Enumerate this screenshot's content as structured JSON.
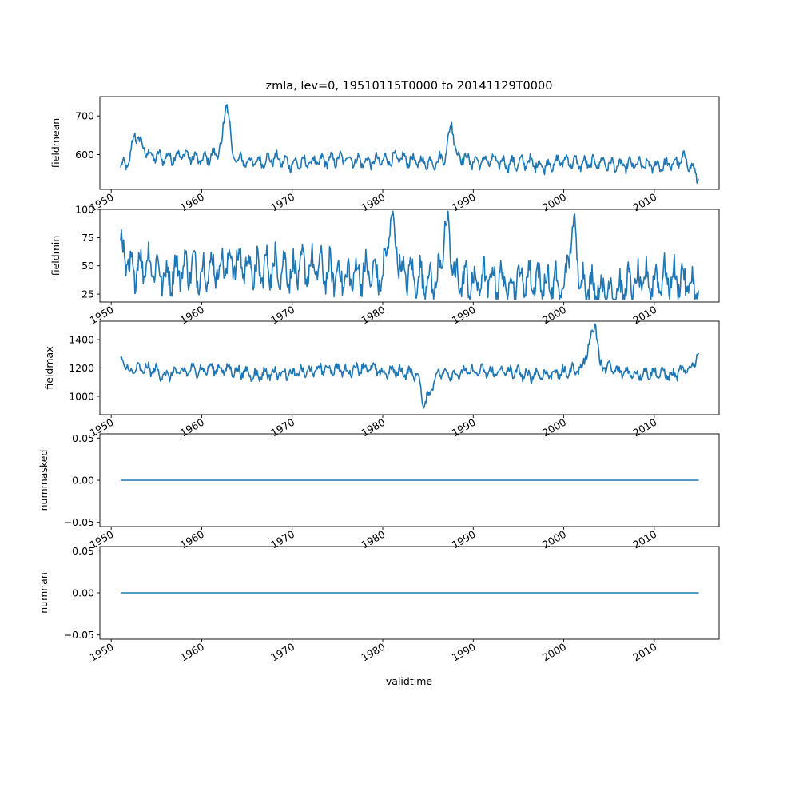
{
  "figure": {
    "title": "zmla, lev=0, 19510115T0000 to 20141129T0000",
    "xlabel": "validtime"
  },
  "chart_data": [
    {
      "type": "line",
      "ylabel": "fieldmean",
      "x_start": "1951-01-15",
      "x_end": "2014-11-29",
      "xlim": [
        "1948-10-01",
        "2017-03-01"
      ],
      "ylim": [
        510,
        750
      ],
      "yticks": [
        "600",
        "700"
      ],
      "ytick_values": [
        600,
        700
      ],
      "xticks": [
        "1950",
        "1960",
        "1970",
        "1980",
        "1990",
        "2000",
        "2010"
      ],
      "color": "#1f77b4",
      "grid": false,
      "series": [
        {
          "x": [
            1951.04,
            1952.0,
            1952.6,
            1954.0,
            1956.0,
            1958.0,
            1960.0,
            1961.5,
            1962.2,
            1962.5,
            1962.75,
            1963.0,
            1963.4,
            1964.0,
            1966.0,
            1968.0,
            1970.0,
            1972.0,
            1974.0,
            1976.0,
            1978.0,
            1980.0,
            1982.0,
            1984.0,
            1986.0,
            1987.0,
            1987.6,
            1988.2,
            1990.0,
            1992.0,
            1994.0,
            1996.0,
            1998.0,
            2000.0,
            2002.0,
            2004.0,
            2006.0,
            2008.0,
            2010.0,
            2012.0,
            2013.5,
            2014.91
          ],
          "y": [
            566,
            580,
            656,
            600,
            590,
            600,
            585,
            600,
            630,
            690,
            735,
            700,
            600,
            585,
            580,
            590,
            575,
            580,
            585,
            590,
            580,
            585,
            590,
            580,
            580,
            600,
            686,
            600,
            580,
            585,
            575,
            580,
            570,
            585,
            575,
            580,
            570,
            575,
            570,
            575,
            590,
            536
          ]
        }
      ]
    },
    {
      "type": "line",
      "ylabel": "fieldmin",
      "ylim": [
        18,
        100
      ],
      "yticks": [
        "25",
        "50",
        "75",
        "100"
      ],
      "ytick_values": [
        25,
        50,
        75,
        100
      ],
      "xticks": [
        "1950",
        "1960",
        "1970",
        "1980",
        "1990",
        "2000",
        "2010"
      ],
      "color": "#1f77b4",
      "grid": false,
      "series": [
        {
          "x": [
            1951.04,
            1952.0,
            1954.0,
            1956.0,
            1958.0,
            1960.0,
            1962.0,
            1964.0,
            1966.0,
            1968.0,
            1970.0,
            1972.0,
            1974.0,
            1976.0,
            1978.0,
            1980.0,
            1981.0,
            1982.0,
            1984.0,
            1986.0,
            1987.0,
            1988.0,
            1990.0,
            1992.0,
            1994.0,
            1996.0,
            1998.0,
            2000.0,
            2001.0,
            2002.0,
            2004.0,
            2006.0,
            2008.0,
            2010.0,
            2012.0,
            2014.0,
            2014.91
          ],
          "y": [
            72,
            45,
            55,
            40,
            50,
            45,
            50,
            55,
            45,
            50,
            45,
            50,
            45,
            40,
            45,
            40,
            97,
            45,
            40,
            35,
            88,
            40,
            35,
            40,
            35,
            40,
            35,
            30,
            87,
            35,
            30,
            28,
            35,
            38,
            40,
            35,
            28
          ]
        }
      ]
    },
    {
      "type": "line",
      "ylabel": "fieldmax",
      "ylim": [
        870,
        1530
      ],
      "yticks": [
        "1000",
        "1200",
        "1400"
      ],
      "ytick_values": [
        1000,
        1200,
        1400
      ],
      "xticks": [
        "1950",
        "1960",
        "1970",
        "1980",
        "1990",
        "2000",
        "2010"
      ],
      "color": "#1f77b4",
      "grid": false,
      "series": [
        {
          "x": [
            1951.04,
            1952.0,
            1954.0,
            1956.0,
            1958.0,
            1960.0,
            1962.0,
            1964.0,
            1966.0,
            1968.0,
            1970.0,
            1972.0,
            1974.0,
            1976.0,
            1978.0,
            1980.0,
            1982.0,
            1984.0,
            1984.5,
            1986.0,
            1988.0,
            1990.0,
            1992.0,
            1994.0,
            1996.0,
            1998.0,
            2000.0,
            2002.0,
            2003.5,
            2004.0,
            2006.0,
            2008.0,
            2010.0,
            2012.0,
            2014.0,
            2014.91
          ],
          "y": [
            1270,
            1180,
            1200,
            1150,
            1180,
            1190,
            1200,
            1180,
            1150,
            1170,
            1160,
            1180,
            1200,
            1180,
            1210,
            1170,
            1180,
            1150,
            910,
            1170,
            1160,
            1180,
            1170,
            1180,
            1150,
            1160,
            1170,
            1200,
            1520,
            1220,
            1180,
            1160,
            1170,
            1150,
            1200,
            1310
          ]
        }
      ]
    },
    {
      "type": "line",
      "ylabel": "nummasked",
      "ylim": [
        -0.055,
        0.055
      ],
      "yticks": [
        "−0.05",
        "0.00",
        "0.05"
      ],
      "ytick_values": [
        -0.05,
        0.0,
        0.05
      ],
      "xticks": [
        "1950",
        "1960",
        "1970",
        "1980",
        "1990",
        "2000",
        "2010"
      ],
      "color": "#1f77b4",
      "grid": false,
      "series": [
        {
          "x": [
            1951.04,
            2014.91
          ],
          "y": [
            0.0,
            0.0
          ]
        }
      ]
    },
    {
      "type": "line",
      "ylabel": "numnan",
      "ylim": [
        -0.055,
        0.055
      ],
      "yticks": [
        "−0.05",
        "0.00",
        "0.05"
      ],
      "ytick_values": [
        -0.05,
        0.0,
        0.05
      ],
      "xticks": [
        "1950",
        "1960",
        "1970",
        "1980",
        "1990",
        "2000",
        "2010"
      ],
      "color": "#1f77b4",
      "grid": false,
      "series": [
        {
          "x": [
            1951.04,
            2014.91
          ],
          "y": [
            0.0,
            0.0
          ]
        }
      ]
    }
  ]
}
